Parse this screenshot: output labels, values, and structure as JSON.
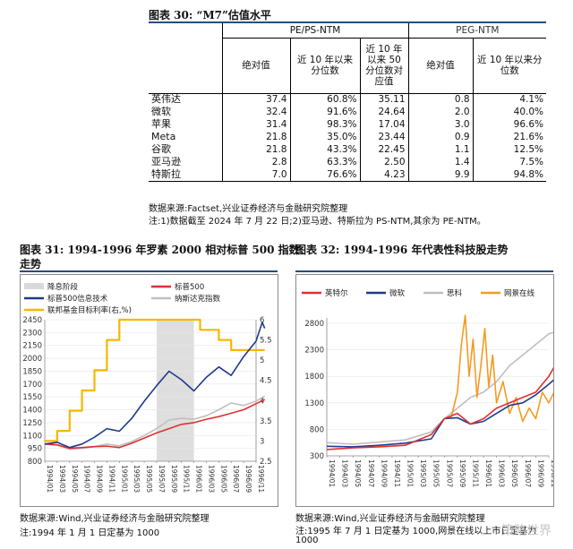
{
  "table": {
    "title": "图表 30:  “M7”估值水平",
    "group_pe": "PE/PS-NTM",
    "group_peg": "PEG-NTM",
    "headers": {
      "abs1": "绝对值",
      "pct1": "近 10 年以来分位数",
      "corr1": "近 10 年以来 50 分位数对应值",
      "abs2": "绝对值",
      "pct2": "近 10 年以来分位数"
    },
    "rows": [
      {
        "name": "英伟达",
        "v1": "37.4",
        "v2": "60.8%",
        "v3": "35.11",
        "v4": "0.8",
        "v5": "4.1%"
      },
      {
        "name": "微软",
        "v1": "32.4",
        "v2": "91.6%",
        "v3": "24.64",
        "v4": "2.0",
        "v5": "40.0%"
      },
      {
        "name": "苹果",
        "v1": "31.4",
        "v2": "98.3%",
        "v3": "17.04",
        "v4": "3.0",
        "v5": "96.6%"
      },
      {
        "name": "Meta",
        "v1": "21.8",
        "v2": "35.0%",
        "v3": "23.44",
        "v4": "0.9",
        "v5": "21.6%"
      },
      {
        "name": "谷歌",
        "v1": "21.8",
        "v2": "43.3%",
        "v3": "22.45",
        "v4": "1.1",
        "v5": "12.5%"
      },
      {
        "name": "亚马逊",
        "v1": "2.8",
        "v2": "63.3%",
        "v3": "2.50",
        "v4": "1.4",
        "v5": "7.5%"
      },
      {
        "name": "特斯拉",
        "v1": "7.0",
        "v2": "76.6%",
        "v3": "4.23",
        "v4": "9.9",
        "v5": "94.8%"
      }
    ],
    "source": "数据来源:Factset,兴业证券经济与金融研究院整理",
    "note": "注:1)数据截至 2024 年 7 月 22 日;2)亚马逊、特斯拉为 PS-NTM,其余为 PE-NTM。"
  },
  "chart31": {
    "title_line1": "图表 31:  1994-1996 年罗素 2000 相对标普 500 指数",
    "title_line2": "走势",
    "source": "数据来源:Wind,兴业证券经济与金融研究院整理",
    "note": "注:1994 年 1 月 1 日定基为 1000"
  },
  "chart32": {
    "title": "图表 32:  1994-1996 年代表性科技股走势",
    "source": "数据来源:Wind,兴业证券经济与金融研究院整理",
    "note_line1": "注:1995 年 7 月 1 日定基为 1000,网景在线以上市日定基为",
    "note_line2": "1000",
    "watermark": "策略世界"
  },
  "chart_data": [
    {
      "type": "line",
      "id": "chart31",
      "legend": [
        "降息阶段",
        "标普500",
        "标普500信息技术",
        "纳斯达克指数",
        "联邦基金目标利率(右,%)"
      ],
      "legend_colors": [
        "#d9d9d9",
        "#e03030",
        "#1f3a8c",
        "#bfbfbf",
        "#f5b800"
      ],
      "ylim_left": [
        800,
        2450
      ],
      "yticks_left": [
        "2450",
        "2300",
        "2150",
        "2000",
        "1850",
        "1700",
        "1550",
        "1400",
        "1250",
        "1100",
        "950",
        "800"
      ],
      "ylim_right": [
        2.5,
        6
      ],
      "yticks_right": [
        "6",
        "5.5",
        "5",
        "4.5",
        "4",
        "3.5",
        "3",
        "2.5"
      ],
      "xticks": [
        "1994/01",
        "1994/03",
        "1994/05",
        "1994/07",
        "1994/09",
        "1994/11",
        "1995/01",
        "1995/03",
        "1995/05",
        "1995/07",
        "1995/09",
        "1995/11",
        "1996/01",
        "1996/03",
        "1996/05",
        "1996/07",
        "1996/09",
        "1996/11"
      ],
      "shade": {
        "label": "降息阶段",
        "from": "1995/07",
        "to": "1996/01"
      },
      "series": [
        {
          "name": "联邦基金目标利率(右,%)",
          "color": "#f5b800",
          "axis": "right",
          "x": [
            0,
            1,
            1,
            2,
            2,
            3,
            3,
            4,
            4,
            5,
            5,
            6,
            6,
            12.5,
            12.5,
            14,
            14,
            15,
            15,
            17.7
          ],
          "values": [
            3.0,
            3.0,
            3.25,
            3.25,
            3.75,
            3.75,
            4.25,
            4.25,
            4.75,
            4.75,
            5.5,
            5.5,
            6.0,
            6.0,
            5.75,
            5.75,
            5.5,
            5.5,
            5.25,
            5.25
          ]
        },
        {
          "name": "纳斯达克指数",
          "color": "#bfbfbf",
          "axis": "left",
          "x": [
            0,
            1,
            2,
            3,
            4,
            5,
            6,
            7,
            8,
            9,
            10,
            11,
            12,
            13,
            14,
            15,
            16,
            17,
            17.7
          ],
          "values": [
            1000,
            990,
            940,
            950,
            970,
            1000,
            980,
            1030,
            1100,
            1180,
            1280,
            1300,
            1290,
            1330,
            1400,
            1480,
            1450,
            1500,
            1560
          ]
        },
        {
          "name": "标普500",
          "color": "#e03030",
          "axis": "left",
          "x": [
            0,
            1,
            2,
            3,
            4,
            5,
            6,
            7,
            8,
            9,
            10,
            11,
            12,
            13,
            14,
            15,
            16,
            17,
            17.7
          ],
          "values": [
            1000,
            990,
            950,
            960,
            970,
            975,
            960,
            1010,
            1070,
            1130,
            1180,
            1230,
            1250,
            1290,
            1320,
            1360,
            1400,
            1470,
            1520
          ]
        },
        {
          "name": "标普500信息技术",
          "color": "#1f3a8c",
          "axis": "left",
          "x": [
            0,
            1,
            2,
            3,
            4,
            5,
            6,
            7,
            8,
            9,
            10,
            11,
            12,
            13,
            14,
            15,
            16,
            17,
            17.5,
            17.7
          ],
          "values": [
            1000,
            1020,
            960,
            1000,
            1080,
            1180,
            1150,
            1300,
            1500,
            1680,
            1850,
            1750,
            1620,
            1780,
            1900,
            1800,
            2020,
            2200,
            2420,
            2350
          ]
        }
      ]
    },
    {
      "type": "line",
      "id": "chart32",
      "legend": [
        "英特尔",
        "微软",
        "思科",
        "网景在线"
      ],
      "legend_colors": [
        "#e03030",
        "#1f3a8c",
        "#bfbfbf",
        "#f59a23"
      ],
      "ylim": [
        300,
        2900
      ],
      "yticks": [
        "2800",
        "2300",
        "1800",
        "1300",
        "800",
        "300"
      ],
      "xticks": [
        "1994/01",
        "1994/03",
        "1994/05",
        "1994/07",
        "1994/09",
        "1994/11",
        "1995/01",
        "1995/03",
        "1995/05",
        "1995/07",
        "1995/09",
        "1995/11",
        "1996/01",
        "1996/03",
        "1996/05",
        "1996/07",
        "1996/09",
        "1996/11"
      ],
      "series": [
        {
          "name": "思科",
          "color": "#bfbfbf",
          "x": [
            0,
            2,
            4,
            6,
            8,
            9,
            10,
            11,
            12,
            13,
            14,
            15,
            16,
            17,
            17.7
          ],
          "values": [
            550,
            520,
            560,
            600,
            750,
            1000,
            1200,
            1400,
            1500,
            1700,
            2000,
            2200,
            2400,
            2600,
            2650
          ]
        },
        {
          "name": "网景在线",
          "color": "#f59a23",
          "x": [
            9.5,
            10,
            10.3,
            10.6,
            10.9,
            11.2,
            11.5,
            11.8,
            12.1,
            12.4,
            12.7,
            13,
            13.5,
            14,
            14.5,
            15,
            15.5,
            16,
            16.5,
            17,
            17.7
          ],
          "values": [
            1000,
            1500,
            2400,
            2950,
            1800,
            2500,
            1400,
            2000,
            2700,
            1600,
            2200,
            1300,
            1700,
            1100,
            1400,
            950,
            1200,
            1000,
            1500,
            1300,
            1650
          ]
        },
        {
          "name": "微软",
          "color": "#1f3a8c",
          "x": [
            0,
            2,
            4,
            6,
            8,
            9,
            10,
            11,
            12,
            13,
            14,
            15,
            16,
            17,
            17.7
          ],
          "values": [
            480,
            470,
            500,
            540,
            620,
            1000,
            1020,
            900,
            950,
            1100,
            1250,
            1300,
            1450,
            1650,
            1800
          ]
        },
        {
          "name": "英特尔",
          "color": "#e03030",
          "x": [
            0,
            2,
            4,
            6,
            8,
            9,
            10,
            11,
            12,
            13,
            14,
            15,
            16,
            17,
            17.7
          ],
          "values": [
            420,
            450,
            470,
            500,
            700,
            1000,
            1100,
            900,
            1000,
            1200,
            1300,
            1400,
            1500,
            1800,
            2100
          ]
        }
      ]
    }
  ]
}
